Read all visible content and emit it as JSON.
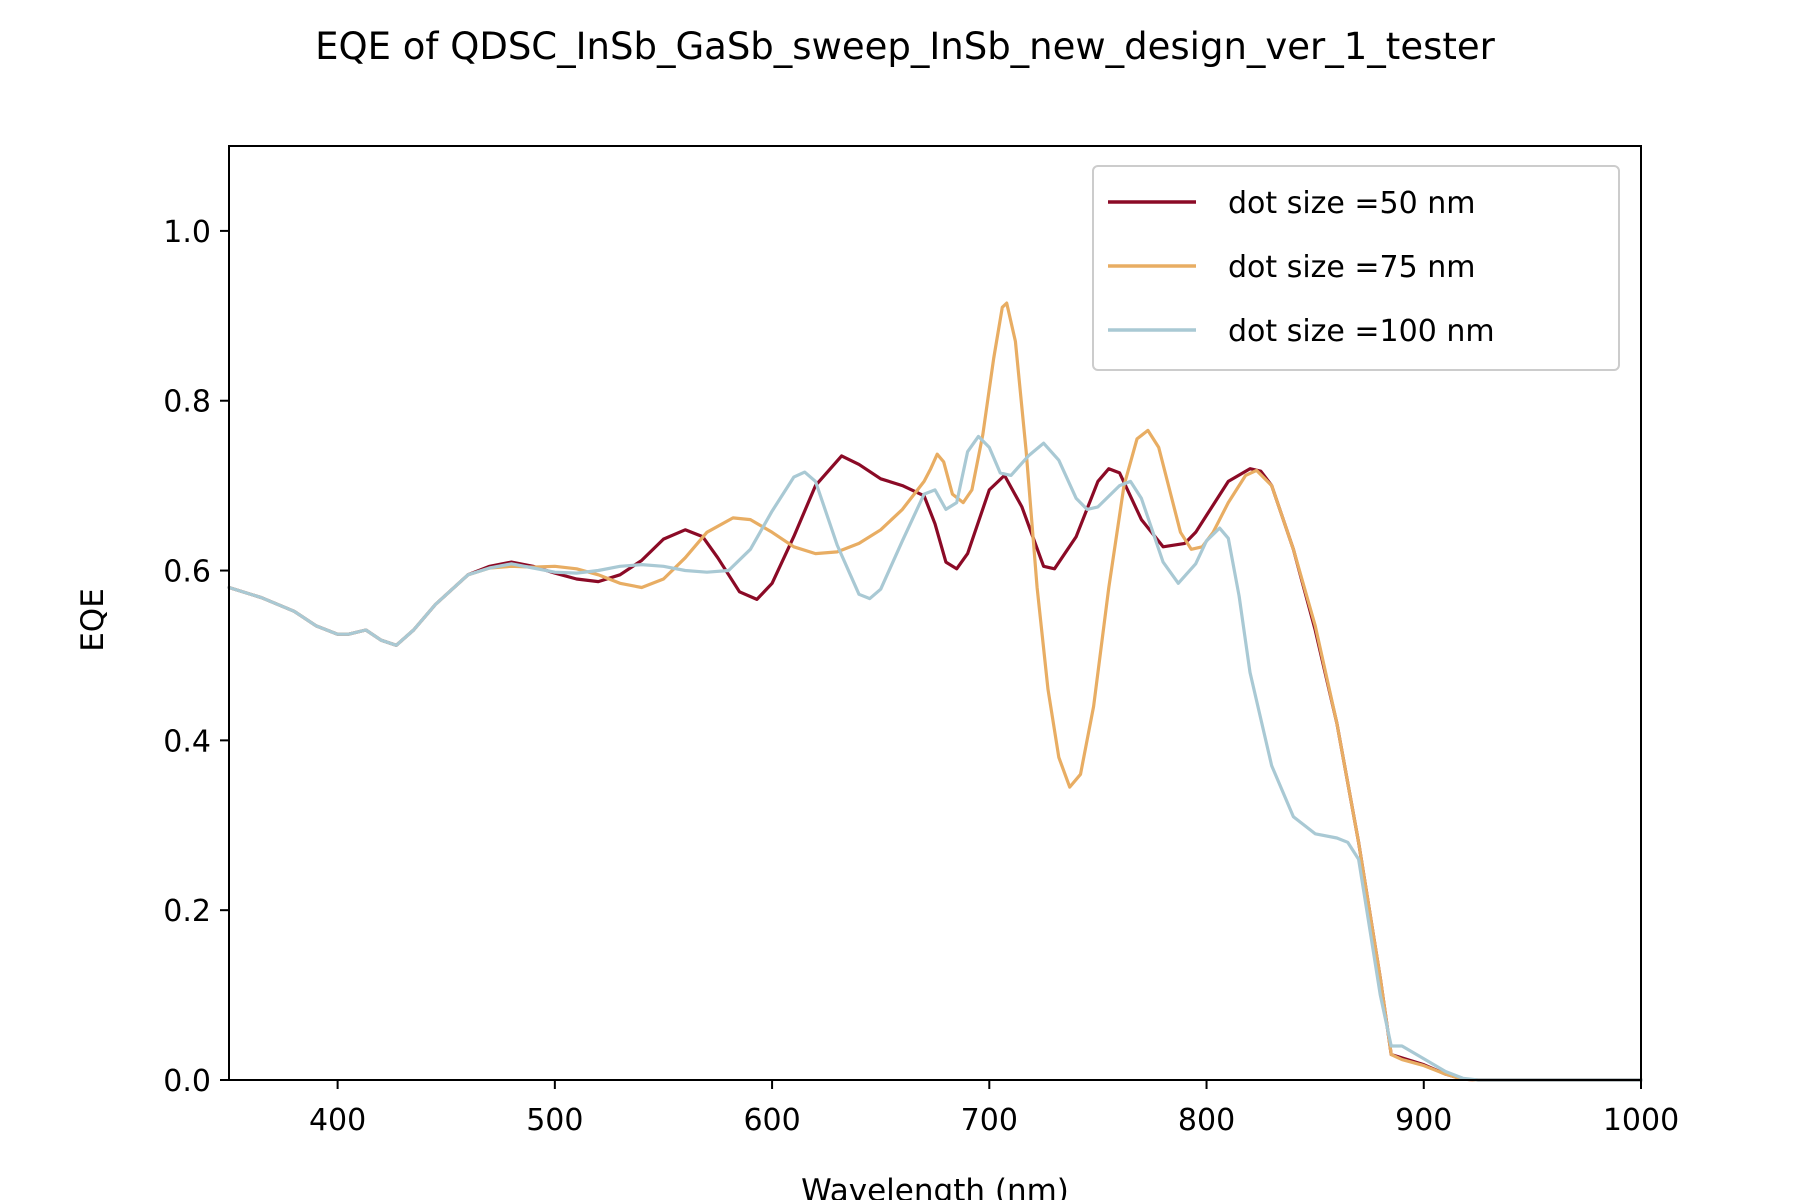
{
  "chart_data": {
    "type": "line",
    "title": "EQE of  QDSC_InSb_GaSb_sweep_InSb_new_design_ver_1_tester",
    "xlabel": "Wavelength (nm)",
    "ylabel": "EQE",
    "xlim": [
      350,
      1000
    ],
    "ylim": [
      0,
      1.1
    ],
    "xticks": [
      400,
      500,
      600,
      700,
      800,
      900,
      1000
    ],
    "xtick_labels": [
      "400",
      "500",
      "600",
      "700",
      "800",
      "900",
      "1000"
    ],
    "yticks": [
      0,
      0.2,
      0.4,
      0.6,
      0.8,
      1.0
    ],
    "ytick_labels": [
      "0.0",
      "0.2",
      "0.4",
      "0.6",
      "0.8",
      "1.0"
    ],
    "grid": false,
    "legend_position": "top-right",
    "series": [
      {
        "name": "dot size =50 nm",
        "color": "#8b0a26",
        "x": [
          350,
          365,
          380,
          390,
          400,
          405,
          413,
          420,
          427,
          435,
          445,
          460,
          470,
          480,
          490,
          500,
          510,
          520,
          530,
          540,
          550,
          560,
          568,
          575,
          585,
          593,
          600,
          610,
          620,
          632,
          640,
          650,
          660,
          670,
          675,
          680,
          685,
          690,
          700,
          707,
          715,
          725,
          730,
          740,
          750,
          755,
          760,
          770,
          780,
          790,
          795,
          800,
          810,
          820,
          825,
          830,
          840,
          850,
          860,
          870,
          880,
          885,
          890,
          900,
          910,
          918,
          925,
          940,
          960,
          980,
          1000
        ],
        "y": [
          0.58,
          0.568,
          0.552,
          0.535,
          0.525,
          0.525,
          0.53,
          0.518,
          0.512,
          0.53,
          0.56,
          0.595,
          0.605,
          0.61,
          0.605,
          0.597,
          0.59,
          0.587,
          0.595,
          0.612,
          0.637,
          0.648,
          0.64,
          0.615,
          0.575,
          0.566,
          0.585,
          0.64,
          0.7,
          0.735,
          0.725,
          0.708,
          0.7,
          0.688,
          0.655,
          0.61,
          0.602,
          0.62,
          0.695,
          0.712,
          0.675,
          0.605,
          0.602,
          0.64,
          0.705,
          0.72,
          0.715,
          0.66,
          0.628,
          0.632,
          0.645,
          0.665,
          0.705,
          0.72,
          0.717,
          0.7,
          0.625,
          0.53,
          0.42,
          0.28,
          0.12,
          0.03,
          0.026,
          0.018,
          0.007,
          0.001,
          0.0,
          0.0,
          0.0,
          0.0,
          0.0
        ]
      },
      {
        "name": "dot size =75 nm",
        "color": "#e8ad63",
        "x": [
          350,
          365,
          380,
          390,
          400,
          405,
          413,
          420,
          427,
          435,
          445,
          460,
          470,
          480,
          490,
          500,
          510,
          520,
          530,
          540,
          550,
          560,
          570,
          582,
          590,
          600,
          610,
          620,
          630,
          640,
          650,
          660,
          670,
          673,
          676,
          679,
          683,
          688,
          692,
          697,
          702,
          706,
          708,
          712,
          717,
          722,
          727,
          732,
          737,
          742,
          748,
          755,
          762,
          768,
          773,
          778,
          783,
          788,
          793,
          798,
          803,
          810,
          818,
          823,
          830,
          840,
          850,
          860,
          870,
          880,
          885,
          890,
          900,
          910,
          918,
          925,
          940,
          960,
          980,
          1000
        ],
        "y": [
          0.58,
          0.568,
          0.552,
          0.535,
          0.525,
          0.525,
          0.53,
          0.518,
          0.512,
          0.53,
          0.56,
          0.595,
          0.603,
          0.605,
          0.604,
          0.605,
          0.602,
          0.595,
          0.585,
          0.58,
          0.59,
          0.615,
          0.645,
          0.662,
          0.66,
          0.645,
          0.628,
          0.62,
          0.622,
          0.632,
          0.648,
          0.672,
          0.705,
          0.72,
          0.737,
          0.728,
          0.69,
          0.68,
          0.695,
          0.76,
          0.85,
          0.91,
          0.915,
          0.87,
          0.74,
          0.58,
          0.46,
          0.38,
          0.345,
          0.36,
          0.44,
          0.58,
          0.7,
          0.755,
          0.765,
          0.745,
          0.695,
          0.645,
          0.625,
          0.628,
          0.645,
          0.68,
          0.712,
          0.718,
          0.7,
          0.625,
          0.535,
          0.42,
          0.28,
          0.12,
          0.03,
          0.024,
          0.017,
          0.007,
          0.001,
          0.0,
          0.0,
          0.0,
          0.0,
          0.0
        ]
      },
      {
        "name": "dot size =100 nm",
        "color": "#a9c9d4",
        "x": [
          350,
          365,
          380,
          390,
          400,
          405,
          413,
          420,
          427,
          435,
          445,
          460,
          470,
          480,
          490,
          500,
          510,
          520,
          530,
          540,
          550,
          560,
          570,
          580,
          590,
          600,
          610,
          615,
          620,
          630,
          640,
          645,
          650,
          660,
          670,
          675,
          680,
          685,
          690,
          695,
          700,
          705,
          710,
          718,
          725,
          732,
          740,
          745,
          750,
          760,
          765,
          770,
          780,
          787,
          795,
          800,
          806,
          810,
          815,
          820,
          830,
          840,
          850,
          860,
          865,
          870,
          875,
          880,
          885,
          890,
          900,
          910,
          918,
          925,
          940,
          960,
          980,
          1000
        ],
        "y": [
          0.58,
          0.568,
          0.552,
          0.535,
          0.525,
          0.525,
          0.53,
          0.518,
          0.512,
          0.53,
          0.56,
          0.595,
          0.603,
          0.608,
          0.603,
          0.598,
          0.597,
          0.6,
          0.605,
          0.607,
          0.605,
          0.6,
          0.598,
          0.6,
          0.625,
          0.67,
          0.71,
          0.716,
          0.705,
          0.63,
          0.572,
          0.567,
          0.578,
          0.635,
          0.69,
          0.695,
          0.672,
          0.68,
          0.74,
          0.758,
          0.745,
          0.715,
          0.712,
          0.735,
          0.75,
          0.73,
          0.685,
          0.672,
          0.675,
          0.7,
          0.705,
          0.685,
          0.61,
          0.585,
          0.608,
          0.635,
          0.65,
          0.638,
          0.57,
          0.48,
          0.37,
          0.31,
          0.29,
          0.285,
          0.28,
          0.26,
          0.18,
          0.1,
          0.04,
          0.04,
          0.025,
          0.01,
          0.002,
          0.0,
          0.0,
          0.0,
          0.0,
          0.0
        ]
      }
    ]
  }
}
